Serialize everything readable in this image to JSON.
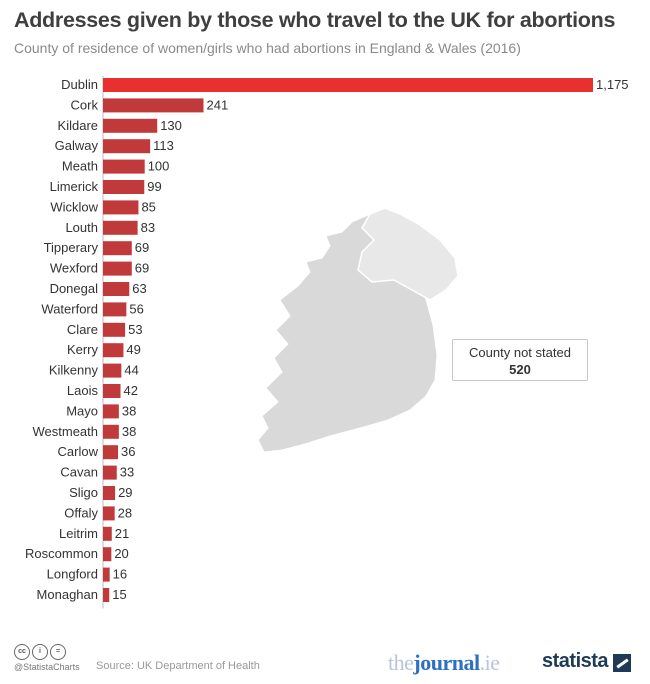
{
  "header": {
    "title": "Addresses given by those who travel to the UK for abortions",
    "subtitle": "County of residence of women/girls who had abortions in England & Wales (2016)"
  },
  "chart_data": {
    "type": "bar",
    "orientation": "horizontal",
    "title": "Addresses given by those who travel to the UK for abortions",
    "subtitle": "County of residence of women/girls who had abortions in England & Wales (2016)",
    "categories": [
      "Dublin",
      "Cork",
      "Kildare",
      "Galway",
      "Meath",
      "Limerick",
      "Wicklow",
      "Louth",
      "Tipperary",
      "Wexford",
      "Donegal",
      "Waterford",
      "Clare",
      "Kerry",
      "Kilkenny",
      "Laois",
      "Mayo",
      "Westmeath",
      "Carlow",
      "Cavan",
      "Sligo",
      "Offaly",
      "Leitrim",
      "Roscommon",
      "Longford",
      "Monaghan"
    ],
    "values": [
      1175,
      241,
      130,
      113,
      100,
      99,
      85,
      83,
      69,
      69,
      63,
      56,
      53,
      49,
      44,
      42,
      38,
      38,
      36,
      33,
      29,
      28,
      21,
      20,
      16,
      15
    ],
    "value_labels": [
      "1,175",
      "241",
      "130",
      "113",
      "100",
      "99",
      "85",
      "83",
      "69",
      "69",
      "63",
      "56",
      "53",
      "49",
      "44",
      "42",
      "38",
      "38",
      "36",
      "33",
      "29",
      "28",
      "21",
      "20",
      "16",
      "15"
    ],
    "xlim": [
      0,
      1175
    ],
    "grid": false,
    "colors": {
      "highlight": "#e8312f",
      "bar": "#c0393b"
    },
    "annotation": {
      "label": "County not stated",
      "value": "520"
    }
  },
  "footer": {
    "cc_icons": [
      "cc-icon",
      "by-icon",
      "equals-icon"
    ],
    "handle": "@StatistaCharts",
    "source": "Source: UK Department of Health",
    "journal_prefix": "the",
    "journal_name": "journal",
    "journal_suffix": ".ie",
    "statista": "statista"
  }
}
